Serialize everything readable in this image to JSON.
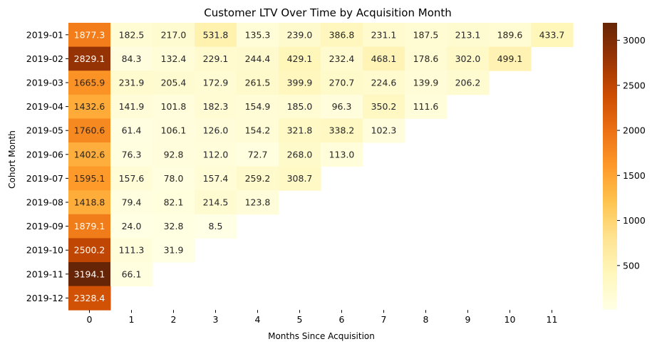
{
  "chart_data": {
    "type": "heatmap",
    "title": "Customer LTV Over Time by Acquisition Month",
    "xlabel": "Months Since Acquisition",
    "ylabel": "Cohort Month",
    "x_categories": [
      "0",
      "1",
      "2",
      "3",
      "4",
      "5",
      "6",
      "7",
      "8",
      "9",
      "10",
      "11"
    ],
    "y_categories": [
      "2019-01",
      "2019-02",
      "2019-03",
      "2019-04",
      "2019-05",
      "2019-06",
      "2019-07",
      "2019-08",
      "2019-09",
      "2019-10",
      "2019-11",
      "2019-12"
    ],
    "values": [
      [
        1877.3,
        182.5,
        217.0,
        531.8,
        135.3,
        239.0,
        386.8,
        231.1,
        187.5,
        213.1,
        189.6,
        433.7
      ],
      [
        2829.1,
        84.3,
        132.4,
        229.1,
        244.4,
        429.1,
        232.4,
        468.1,
        178.6,
        302.0,
        499.1,
        null
      ],
      [
        1665.9,
        231.9,
        205.4,
        172.9,
        261.5,
        399.9,
        270.7,
        224.6,
        139.9,
        206.2,
        null,
        null
      ],
      [
        1432.6,
        141.9,
        101.8,
        182.3,
        154.9,
        185.0,
        96.3,
        350.2,
        111.6,
        null,
        null,
        null
      ],
      [
        1760.6,
        61.4,
        106.1,
        126.0,
        154.2,
        321.8,
        338.2,
        102.3,
        null,
        null,
        null,
        null
      ],
      [
        1402.6,
        76.3,
        92.8,
        112.0,
        72.7,
        268.0,
        113.0,
        null,
        null,
        null,
        null,
        null
      ],
      [
        1595.1,
        157.6,
        78.0,
        157.4,
        259.2,
        308.7,
        null,
        null,
        null,
        null,
        null,
        null
      ],
      [
        1418.8,
        79.4,
        82.1,
        214.5,
        123.8,
        null,
        null,
        null,
        null,
        null,
        null,
        null
      ],
      [
        1879.1,
        24.0,
        32.8,
        8.5,
        null,
        null,
        null,
        null,
        null,
        null,
        null,
        null
      ],
      [
        2500.2,
        111.3,
        31.9,
        null,
        null,
        null,
        null,
        null,
        null,
        null,
        null,
        null
      ],
      [
        3194.1,
        66.1,
        null,
        null,
        null,
        null,
        null,
        null,
        null,
        null,
        null,
        null
      ],
      [
        2328.4,
        null,
        null,
        null,
        null,
        null,
        null,
        null,
        null,
        null,
        null,
        null
      ]
    ],
    "value_format": "1 decimal",
    "colormap": "YlOrBr",
    "color_range": [
      8.5,
      3194.1
    ],
    "colorbar_ticks": [
      "500",
      "1000",
      "1500",
      "2000",
      "2500",
      "3000"
    ],
    "colorbar_tick_values": [
      500,
      1000,
      1500,
      2000,
      2500,
      3000
    ],
    "colorbar_position": "right"
  }
}
